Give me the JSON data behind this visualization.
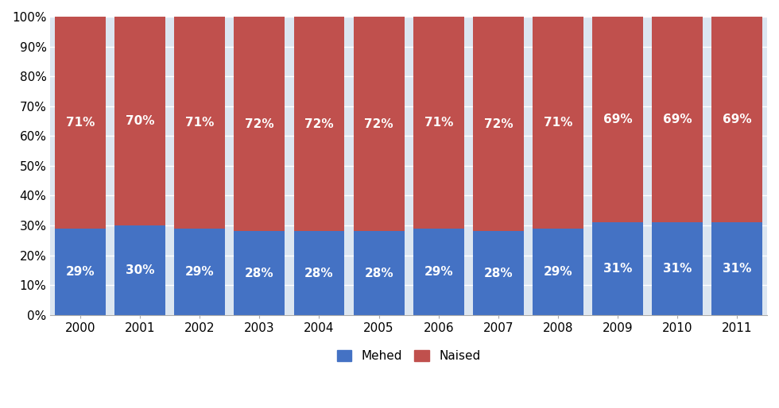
{
  "years": [
    "2000",
    "2001",
    "2002",
    "2003",
    "2004",
    "2005",
    "2006",
    "2007",
    "2008",
    "2009",
    "2010",
    "2011"
  ],
  "mehed": [
    29,
    30,
    29,
    28,
    28,
    28,
    29,
    28,
    29,
    31,
    31,
    31
  ],
  "naised": [
    71,
    70,
    71,
    72,
    72,
    72,
    71,
    72,
    71,
    69,
    69,
    69
  ],
  "mehed_color": "#4472C4",
  "naised_color": "#C0504D",
  "text_color": "#FFFFFF",
  "background_color": "#FFFFFF",
  "plot_bg_color": "#DCE6F1",
  "grid_color": "#FFFFFF",
  "ylabel_ticks": [
    "0%",
    "10%",
    "20%",
    "30%",
    "40%",
    "50%",
    "60%",
    "70%",
    "80%",
    "90%",
    "100%"
  ],
  "ylim": [
    0,
    100
  ],
  "legend_labels": [
    "Mehed",
    "Naised"
  ],
  "font_size_bar_label": 11,
  "font_size_tick": 11,
  "font_size_legend": 11,
  "bar_width": 0.85
}
